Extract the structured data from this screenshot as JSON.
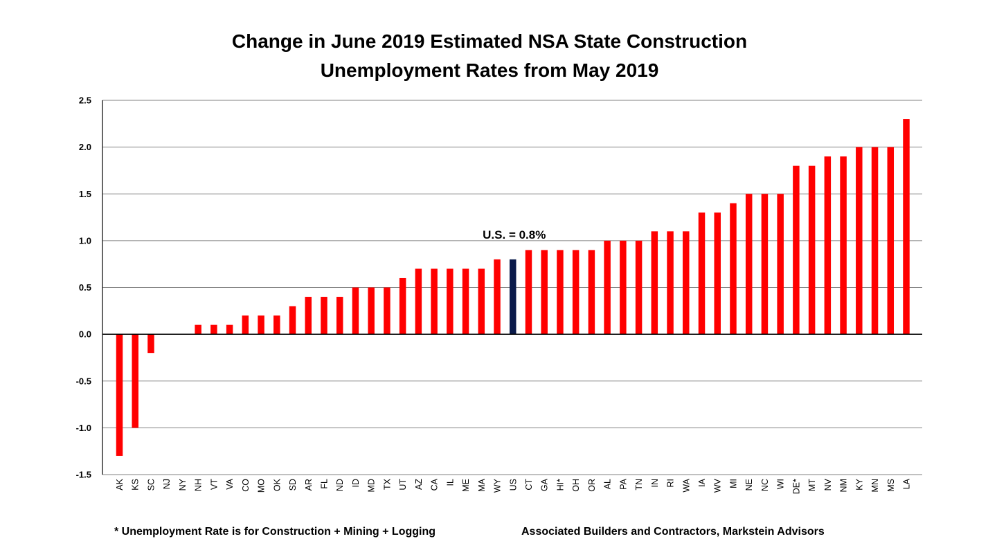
{
  "chart_data": {
    "type": "bar",
    "title": [
      "Change in June 2019 Estimated NSA State Construction",
      "Unemployment Rates from May 2019"
    ],
    "xlabel": "",
    "ylabel": "",
    "ylim": [
      -1.5,
      2.5
    ],
    "yticks": [
      "2.5",
      "2.0",
      "1.5",
      "1.0",
      "0.5",
      "0.0",
      "-0.5",
      "-1.0",
      "-1.5"
    ],
    "grid": true,
    "categories": [
      "AK",
      "KS",
      "SC",
      "NJ",
      "NY",
      "NH",
      "VT",
      "VA",
      "CO",
      "MO",
      "OK",
      "SD",
      "AR",
      "FL",
      "ND",
      "ID",
      "MD",
      "TX",
      "UT",
      "AZ",
      "CA",
      "IL",
      "ME",
      "MA",
      "WY",
      "US",
      "CT",
      "GA",
      "HI*",
      "OH",
      "OR",
      "AL",
      "PA",
      "TN",
      "IN",
      "RI",
      "WA",
      "IA",
      "WV",
      "MI",
      "NE",
      "NC",
      "WI",
      "DE*",
      "MT",
      "NV",
      "NM",
      "KY",
      "MN",
      "MS",
      "LA"
    ],
    "values": [
      -1.3,
      -1.0,
      -0.2,
      0,
      0,
      0.1,
      0.1,
      0.1,
      0.2,
      0.2,
      0.2,
      0.3,
      0.4,
      0.4,
      0.4,
      0.5,
      0.5,
      0.5,
      0.6,
      0.7,
      0.7,
      0.7,
      0.7,
      0.7,
      0.8,
      0.8,
      0.9,
      0.9,
      0.9,
      0.9,
      0.9,
      1.0,
      1.0,
      1.0,
      1.1,
      1.1,
      1.1,
      1.3,
      1.3,
      1.4,
      1.5,
      1.5,
      1.5,
      1.8,
      1.8,
      1.9,
      1.9,
      2.0,
      2.0,
      2.0,
      2.3
    ],
    "colors": {
      "state": "#ff0000",
      "us": "#0a1a4a"
    },
    "highlight": "US",
    "annotation": "U.S. = 0.8%"
  },
  "footnotes": {
    "left": "* Unemployment Rate is for Construction + Mining + Logging",
    "right": "Associated Builders and Contractors, Markstein Advisors"
  }
}
